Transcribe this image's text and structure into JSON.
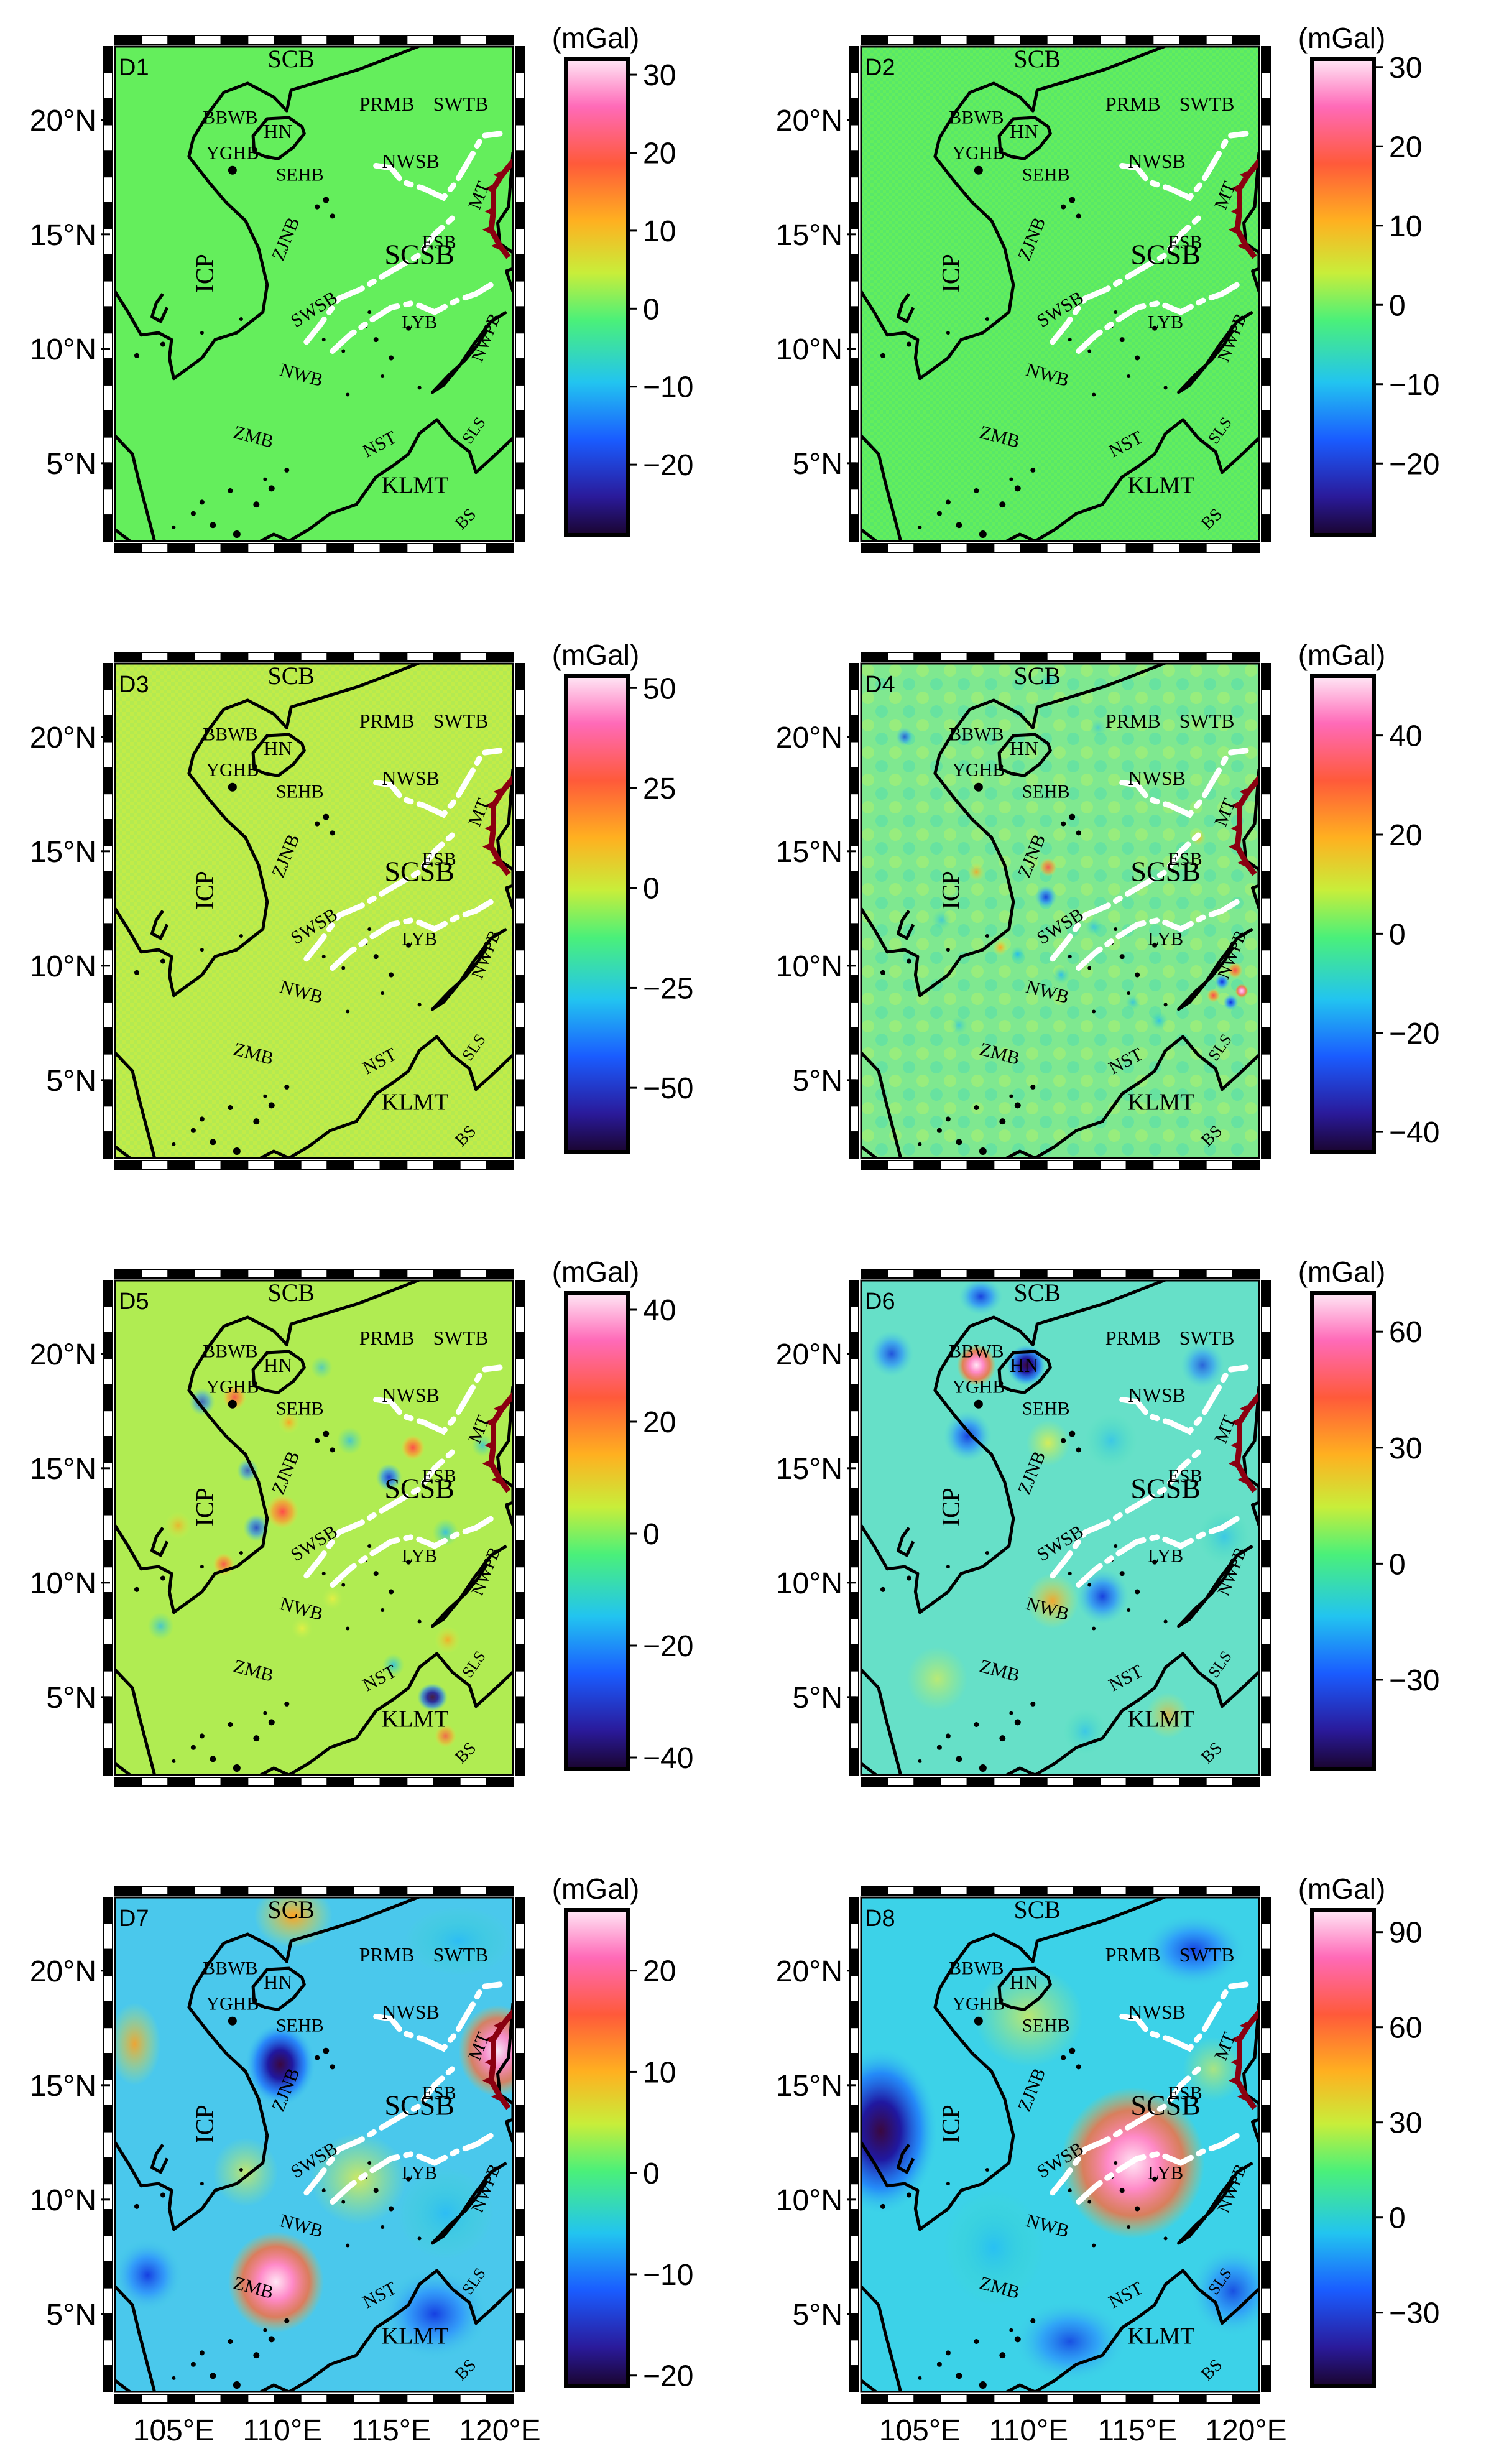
{
  "figure": {
    "lat_ticks": [
      "20°N",
      "15°N",
      "10°N",
      "5°N"
    ],
    "lon_ticks": [
      "105°E",
      "110°E",
      "115°E",
      "120°E"
    ],
    "colorbar_unit": "(mGal)",
    "region_labels": [
      "SCB",
      "PRMB",
      "SWTB",
      "BBWB",
      "HN",
      "YGHB",
      "SEHB",
      "NWSB",
      "MT",
      "ZJNB",
      "ESB",
      "SCSB",
      "ICP",
      "SWSB",
      "LYB",
      "NWPB",
      "NWB",
      "ZMB",
      "NST",
      "SLS",
      "KLMT",
      "BS"
    ],
    "panels": [
      {
        "id": "D1",
        "ticks": [
          "30",
          "20",
          "10",
          "0",
          "−10",
          "−20"
        ],
        "tick_values": [
          30,
          20,
          10,
          0,
          -10,
          -20
        ],
        "range": [
          -29,
          32
        ],
        "field": "flat"
      },
      {
        "id": "D2",
        "ticks": [
          "30",
          "20",
          "10",
          "0",
          "−10",
          "−20"
        ],
        "tick_values": [
          30,
          20,
          10,
          0,
          -10,
          -20
        ],
        "range": [
          -29,
          31
        ],
        "field": "flat"
      },
      {
        "id": "D3",
        "ticks": [
          "50",
          "25",
          "0",
          "−25",
          "−50"
        ],
        "tick_values": [
          50,
          25,
          0,
          -25,
          -50
        ],
        "range": [
          -66,
          53
        ],
        "field": "flat_yellow"
      },
      {
        "id": "D4",
        "ticks": [
          "40",
          "20",
          "0",
          "−20",
          "−40"
        ],
        "tick_values": [
          40,
          20,
          0,
          -20,
          -40
        ],
        "range": [
          -44,
          52
        ],
        "field": "ripple"
      },
      {
        "id": "D5",
        "ticks": [
          "40",
          "20",
          "0",
          "−20",
          "−40"
        ],
        "tick_values": [
          40,
          20,
          0,
          -20,
          -40
        ],
        "range": [
          -42,
          43
        ],
        "field": "blobs"
      },
      {
        "id": "D6",
        "ticks": [
          "60",
          "30",
          "0",
          "−30"
        ],
        "tick_values": [
          60,
          30,
          0,
          -30
        ],
        "range": [
          -53,
          70
        ],
        "field": "medium"
      },
      {
        "id": "D7",
        "ticks": [
          "20",
          "10",
          "0",
          "−10",
          "−20"
        ],
        "tick_values": [
          20,
          10,
          0,
          -10,
          -20
        ],
        "range": [
          -21,
          26
        ],
        "field": "large"
      },
      {
        "id": "D8",
        "ticks": [
          "90",
          "60",
          "30",
          "0",
          "−30"
        ],
        "tick_values": [
          90,
          60,
          30,
          0,
          -30
        ],
        "range": [
          -53,
          97
        ],
        "field": "huge"
      }
    ]
  }
}
